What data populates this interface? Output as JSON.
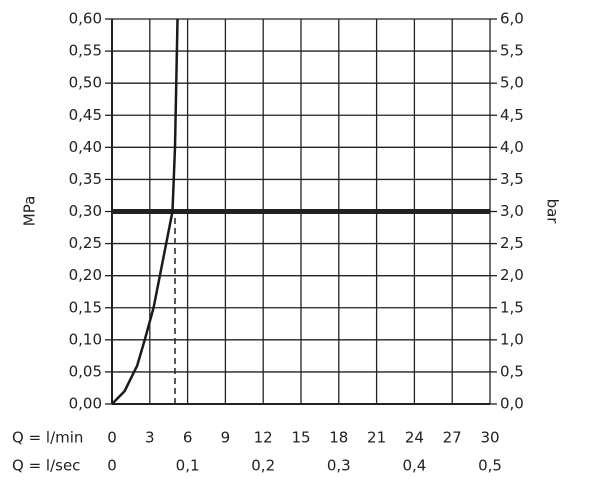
{
  "chart_data": {
    "type": "line",
    "ylabel": "MPa",
    "y2label": "bar",
    "xlabel": "Q = l/min",
    "x2label": "Q = l/sec",
    "xlim": [
      0,
      30
    ],
    "xticks": [
      0,
      3,
      6,
      9,
      12,
      15,
      18,
      21,
      24,
      27,
      30
    ],
    "x2lim": [
      0,
      0.5
    ],
    "x2ticks": [
      0,
      {
        "value": 0.1,
        "label": "0,1"
      },
      {
        "value": 0.2,
        "label": "0,2"
      },
      {
        "value": 0.3,
        "label": "0,3"
      },
      {
        "value": 0.4,
        "label": "0,4"
      },
      {
        "value": 0.5,
        "label": "0,5"
      }
    ],
    "ylim": [
      0,
      0.6
    ],
    "yticks": [
      {
        "value": 0,
        "label": "0,00"
      },
      {
        "value": 0.05,
        "label": "0,05"
      },
      {
        "value": 0.1,
        "label": "0,10"
      },
      {
        "value": 0.15,
        "label": "0,15"
      },
      {
        "value": 0.2,
        "label": "0,20"
      },
      {
        "value": 0.25,
        "label": "0,25"
      },
      {
        "value": 0.3,
        "label": "0,30"
      },
      {
        "value": 0.35,
        "label": "0,35"
      },
      {
        "value": 0.4,
        "label": "0,40"
      },
      {
        "value": 0.45,
        "label": "0,45"
      },
      {
        "value": 0.5,
        "label": "0,50"
      },
      {
        "value": 0.55,
        "label": "0,55"
      },
      {
        "value": 0.6,
        "label": "0,60"
      }
    ],
    "y2lim": [
      0,
      6
    ],
    "y2ticks": [
      {
        "value": 0,
        "label": "0,0"
      },
      {
        "value": 0.5,
        "label": "0,5"
      },
      {
        "value": 1,
        "label": "1,0"
      },
      {
        "value": 1.5,
        "label": "1,5"
      },
      {
        "value": 2,
        "label": "2,0"
      },
      {
        "value": 2.5,
        "label": "2,5"
      },
      {
        "value": 3,
        "label": "3,0"
      },
      {
        "value": 3.5,
        "label": "3,5"
      },
      {
        "value": 4,
        "label": "4,0"
      },
      {
        "value": 4.5,
        "label": "4,5"
      },
      {
        "value": 5,
        "label": "5,0"
      },
      {
        "value": 5.5,
        "label": "5,5"
      },
      {
        "value": 6,
        "label": "6,0"
      }
    ],
    "grid": true,
    "color": "#1a1a1a",
    "x": [
      0,
      1,
      2,
      2.6,
      3.3,
      3.8,
      4.3,
      4.8,
      5.0,
      5.1,
      5.2
    ],
    "values": [
      0,
      0.02,
      0.06,
      0.1,
      0.15,
      0.2,
      0.25,
      0.3,
      0.4,
      0.5,
      0.6
    ],
    "hline": 0.3,
    "vline": 5
  }
}
